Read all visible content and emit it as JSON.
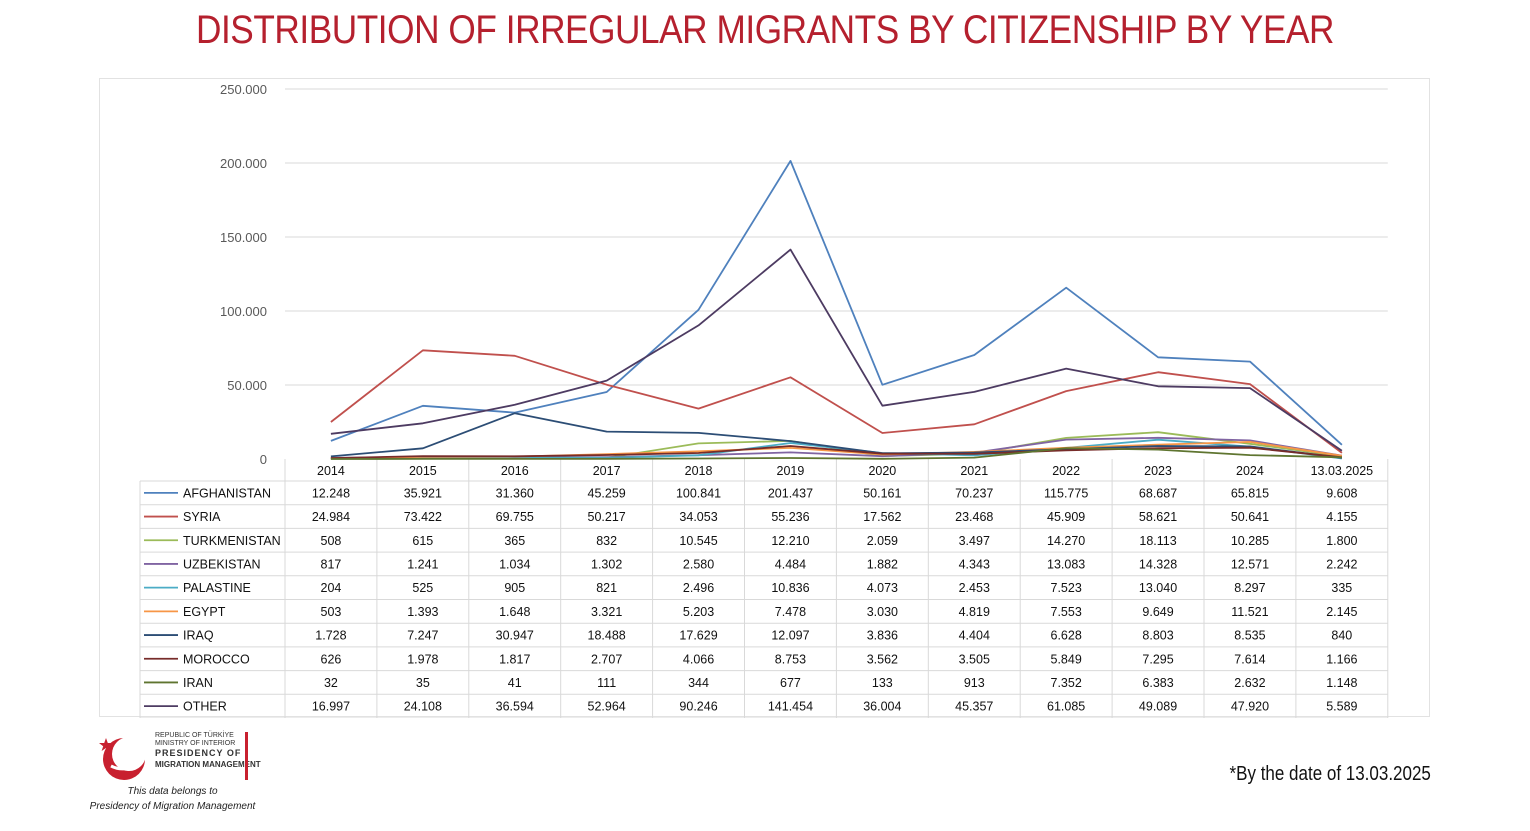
{
  "title": "DISTRIBUTION OF IRREGULAR MIGRANTS BY CITIZENSHIP BY YEAR",
  "footnote": "*By the date of 13.03.2025",
  "logo": {
    "line1": "REPUBLIC OF TÜRKİYE",
    "line2": "MINISTRY OF INTERIOR",
    "line3": "PRESIDENCY OF",
    "line4": "MIGRATION MANAGEMENT"
  },
  "credit": {
    "line1": "This data belongs to",
    "line2": "Presidency of Migration Management"
  },
  "chart_data": {
    "type": "line",
    "ylim": [
      0,
      250000
    ],
    "ytick_labels": [
      "0",
      "50.000",
      "100.000",
      "150.000",
      "200.000",
      "250.000"
    ],
    "ytick_values": [
      0,
      50000,
      100000,
      150000,
      200000,
      250000
    ],
    "grid": true,
    "legend": "data table below chart",
    "categories": [
      "2014",
      "2015",
      "2016",
      "2017",
      "2018",
      "2019",
      "2020",
      "2021",
      "2022",
      "2023",
      "2024",
      "13.03.2025"
    ],
    "series": [
      {
        "name": "AFGHANISTAN",
        "color": "#4f81bd",
        "values": [
          12248,
          35921,
          31360,
          45259,
          100841,
          201437,
          50161,
          70237,
          115775,
          68687,
          65815,
          9608
        ],
        "labels": [
          "12.248",
          "35.921",
          "31.360",
          "45.259",
          "100.841",
          "201.437",
          "50.161",
          "70.237",
          "115.775",
          "68.687",
          "65.815",
          "9.608"
        ]
      },
      {
        "name": "SYRIA",
        "color": "#c0504d",
        "values": [
          24984,
          73422,
          69755,
          50217,
          34053,
          55236,
          17562,
          23468,
          45909,
          58621,
          50641,
          4155
        ],
        "labels": [
          "24.984",
          "73.422",
          "69.755",
          "50.217",
          "34.053",
          "55.236",
          "17.562",
          "23.468",
          "45.909",
          "58.621",
          "50.641",
          "4.155"
        ]
      },
      {
        "name": "TURKMENISTAN",
        "color": "#9bbb59",
        "values": [
          508,
          615,
          365,
          832,
          10545,
          12210,
          2059,
          3497,
          14270,
          18113,
          10285,
          1800
        ],
        "labels": [
          "508",
          "615",
          "365",
          "832",
          "10.545",
          "12.210",
          "2.059",
          "3.497",
          "14.270",
          "18.113",
          "10.285",
          "1.800"
        ]
      },
      {
        "name": "UZBEKISTAN",
        "color": "#8064a2",
        "values": [
          817,
          1241,
          1034,
          1302,
          2580,
          4484,
          1882,
          4343,
          13083,
          14328,
          12571,
          2242
        ],
        "labels": [
          "817",
          "1.241",
          "1.034",
          "1.302",
          "2.580",
          "4.484",
          "1.882",
          "4.343",
          "13.083",
          "14.328",
          "12.571",
          "2.242"
        ]
      },
      {
        "name": "PALASTINE",
        "color": "#4bacc6",
        "values": [
          204,
          525,
          905,
          821,
          2496,
          10836,
          4073,
          2453,
          7523,
          13040,
          8297,
          335
        ],
        "labels": [
          "204",
          "525",
          "905",
          "821",
          "2.496",
          "10.836",
          "4.073",
          "2.453",
          "7.523",
          "13.040",
          "8.297",
          "335"
        ]
      },
      {
        "name": "EGYPT",
        "color": "#f79646",
        "values": [
          503,
          1393,
          1648,
          3321,
          5203,
          7478,
          3030,
          4819,
          7553,
          9649,
          11521,
          2145
        ],
        "labels": [
          "503",
          "1.393",
          "1.648",
          "3.321",
          "5.203",
          "7.478",
          "3.030",
          "4.819",
          "7.553",
          "9.649",
          "11.521",
          "2.145"
        ]
      },
      {
        "name": "IRAQ",
        "color": "#2c4d75",
        "values": [
          1728,
          7247,
          30947,
          18488,
          17629,
          12097,
          3836,
          4404,
          6628,
          8803,
          8535,
          840
        ],
        "labels": [
          "1.728",
          "7.247",
          "30.947",
          "18.488",
          "17.629",
          "12.097",
          "3.836",
          "4.404",
          "6.628",
          "8.803",
          "8.535",
          "840"
        ]
      },
      {
        "name": "MOROCCO",
        "color": "#772c2a",
        "values": [
          626,
          1978,
          1817,
          2707,
          4066,
          8753,
          3562,
          3505,
          5849,
          7295,
          7614,
          1166
        ],
        "labels": [
          "626",
          "1.978",
          "1.817",
          "2.707",
          "4.066",
          "8.753",
          "3.562",
          "3.505",
          "5.849",
          "7.295",
          "7.614",
          "1.166"
        ]
      },
      {
        "name": "IRAN",
        "color": "#5f7530",
        "values": [
          32,
          35,
          41,
          111,
          344,
          677,
          133,
          913,
          7352,
          6383,
          2632,
          1148
        ],
        "labels": [
          "32",
          "35",
          "41",
          "111",
          "344",
          "677",
          "133",
          "913",
          "7.352",
          "6.383",
          "2.632",
          "1.148"
        ]
      },
      {
        "name": "OTHER",
        "color": "#4d3b62",
        "values": [
          16997,
          24108,
          36594,
          52964,
          90246,
          141454,
          36004,
          45357,
          61085,
          49089,
          47920,
          5589
        ],
        "labels": [
          "16.997",
          "24.108",
          "36.594",
          "52.964",
          "90.246",
          "141.454",
          "36.004",
          "45.357",
          "61.085",
          "49.089",
          "47.920",
          "5.589"
        ]
      }
    ]
  }
}
